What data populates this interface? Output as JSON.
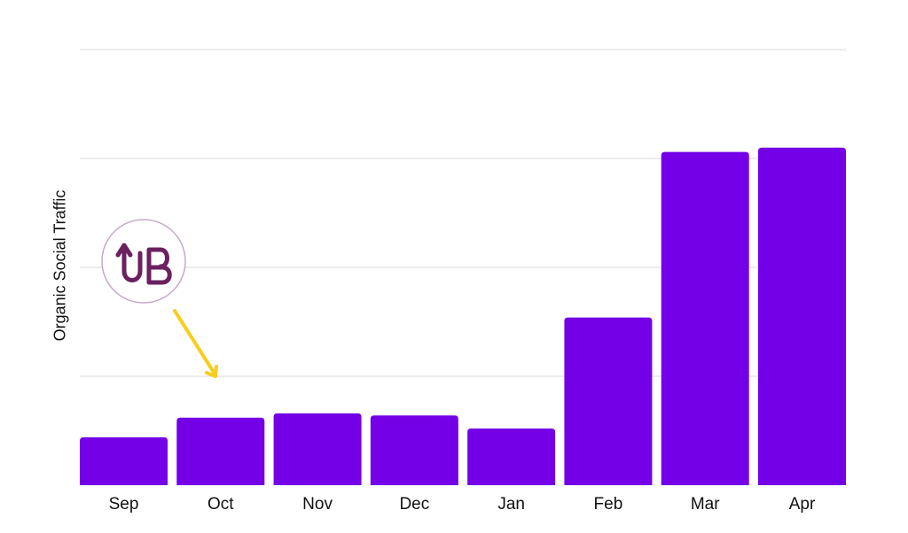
{
  "chart_data": {
    "type": "bar",
    "categories": [
      "Sep",
      "Oct",
      "Nov",
      "Dec",
      "Jan",
      "Feb",
      "Mar",
      "Apr"
    ],
    "values": [
      0.44,
      0.62,
      0.66,
      0.64,
      0.52,
      1.54,
      3.06,
      3.1
    ],
    "xlabel": "",
    "ylabel": "Organic Social Traffic",
    "ylim": [
      0,
      4
    ],
    "y_gridlines": [
      1,
      2,
      3,
      4
    ],
    "grid": true,
    "bar_color": "#7300E6",
    "grid_color": "#D9D9D9"
  },
  "annotation": {
    "logo_text": "UB",
    "logo_color": "#6B2060",
    "logo_ring_color": "#C7A9C9",
    "arrow_color": "#F7CE1E",
    "points_to": "Oct"
  }
}
